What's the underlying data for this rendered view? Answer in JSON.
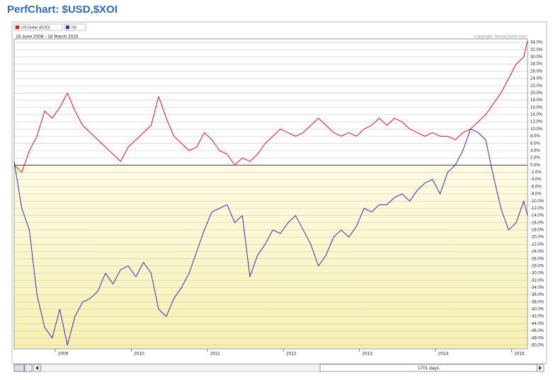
{
  "chart_data": {
    "type": "line",
    "title": "PerfChart: $USD,$XOI",
    "subtitle": "16 June 2008 - 18 March 2015",
    "copyright": "Copyright, StockCharts.com",
    "scrollbar_label": "1701 days",
    "x": [
      2008.46,
      2008.56,
      2008.66,
      2008.76,
      2008.86,
      2008.96,
      2009.06,
      2009.16,
      2009.26,
      2009.36,
      2009.46,
      2009.56,
      2009.66,
      2009.76,
      2009.86,
      2009.96,
      2010.06,
      2010.16,
      2010.26,
      2010.36,
      2010.46,
      2010.56,
      2010.66,
      2010.76,
      2010.86,
      2010.96,
      2011.06,
      2011.16,
      2011.26,
      2011.36,
      2011.46,
      2011.56,
      2011.66,
      2011.76,
      2011.86,
      2011.96,
      2012.06,
      2012.16,
      2012.26,
      2012.36,
      2012.46,
      2012.56,
      2012.66,
      2012.76,
      2012.86,
      2012.96,
      2013.06,
      2013.16,
      2013.26,
      2013.36,
      2013.46,
      2013.56,
      2013.66,
      2013.76,
      2013.86,
      2013.96,
      2014.06,
      2014.16,
      2014.26,
      2014.36,
      2014.46,
      2014.56,
      2014.66,
      2014.76,
      2014.86,
      2014.96,
      2015.06,
      2015.16,
      2015.21
    ],
    "series": [
      {
        "name": "US Dollar (EOD)",
        "color": "#e8161b",
        "values": [
          0,
          -2,
          4,
          8,
          15,
          13,
          16,
          20,
          15,
          11,
          9,
          7,
          5,
          3,
          1,
          5,
          7,
          9,
          11,
          19,
          13,
          8,
          6,
          4,
          5,
          9,
          7,
          4,
          3,
          0,
          2,
          1,
          3,
          6,
          8,
          10,
          9,
          8,
          9,
          11,
          13,
          11,
          9,
          8,
          9,
          8,
          10,
          11,
          13,
          11,
          13,
          12,
          10,
          9,
          8,
          9,
          8,
          8,
          7,
          9,
          10,
          12,
          14,
          17,
          20,
          24,
          28,
          30,
          34.5
        ]
      },
      {
        "name": "Oil",
        "color": "#3b2bb8",
        "values": [
          1,
          -12,
          -18,
          -36,
          -45,
          -48,
          -40,
          -50,
          -42,
          -38,
          -37,
          -35,
          -30,
          -33,
          -29,
          -28,
          -31,
          -27,
          -30,
          -40,
          -42,
          -37,
          -34,
          -30,
          -24,
          -18,
          -13,
          -12,
          -11,
          -16,
          -14,
          -31,
          -25,
          -22,
          -18,
          -19,
          -16,
          -14,
          -18,
          -22,
          -28,
          -25,
          -20,
          -18,
          -20,
          -17,
          -12,
          -13,
          -11,
          -11,
          -9,
          -8,
          -10,
          -7,
          -5,
          -4,
          -8,
          -2,
          0,
          4,
          10,
          9,
          7,
          -3,
          -12,
          -18,
          -16,
          -10,
          -14
        ]
      }
    ],
    "xlim": [
      2008.46,
      2015.21
    ],
    "xticks": [
      2009,
      2010,
      2011,
      2012,
      2013,
      2014,
      2015
    ],
    "ylim": [
      -51,
      35
    ],
    "yticks": [
      {
        "value": -50,
        "label": "-50.0%"
      },
      {
        "value": -48,
        "label": "-48.0%"
      },
      {
        "value": -46,
        "label": "-46.0%"
      },
      {
        "value": -44,
        "label": "-44.0%"
      },
      {
        "value": -42,
        "label": "-42.0%"
      },
      {
        "value": -40,
        "label": "-40.0%"
      },
      {
        "value": -38,
        "label": "-38.0%"
      },
      {
        "value": -36,
        "label": "-36.0%"
      },
      {
        "value": -34,
        "label": "-34.0%"
      },
      {
        "value": -32,
        "label": "-32.0%"
      },
      {
        "value": -30,
        "label": "-30.0%"
      },
      {
        "value": -28,
        "label": "-28.0%"
      },
      {
        "value": -26,
        "label": "-26.0%"
      },
      {
        "value": -24,
        "label": "-24.0%"
      },
      {
        "value": -22,
        "label": "-22.0%"
      },
      {
        "value": -20,
        "label": "-20.0%"
      },
      {
        "value": -18,
        "label": "-18.0%"
      },
      {
        "value": -16,
        "label": "-16.0%"
      },
      {
        "value": -14,
        "label": "-14.0%"
      },
      {
        "value": -12,
        "label": "-12.0%"
      },
      {
        "value": -10,
        "label": "-10.0%"
      },
      {
        "value": -8,
        "label": "-8.0%"
      },
      {
        "value": -6,
        "label": "-6.0%"
      },
      {
        "value": -4,
        "label": "-4.0%"
      },
      {
        "value": -2,
        "label": "-2.0%"
      },
      {
        "value": 0,
        "label": "0.0%"
      },
      {
        "value": 2,
        "label": "2.0%"
      },
      {
        "value": 4,
        "label": "4.0%"
      },
      {
        "value": 6,
        "label": "6.0%"
      },
      {
        "value": 8,
        "label": "8.0%"
      },
      {
        "value": 10,
        "label": "10.0%"
      },
      {
        "value": 12,
        "label": "12.0%"
      },
      {
        "value": 14,
        "label": "14.0%"
      },
      {
        "value": 16,
        "label": "16.0%"
      },
      {
        "value": 18,
        "label": "18.0%"
      },
      {
        "value": 20,
        "label": "20.0%"
      },
      {
        "value": 22,
        "label": "22.0%"
      },
      {
        "value": 24,
        "label": "24.0%"
      },
      {
        "value": 26,
        "label": "26.0%"
      },
      {
        "value": 28,
        "label": "28.0%"
      },
      {
        "value": 30,
        "label": "30.0%"
      },
      {
        "value": 32,
        "label": "32.0%"
      },
      {
        "value": 34,
        "label": "34.0%"
      }
    ],
    "grid": true
  }
}
